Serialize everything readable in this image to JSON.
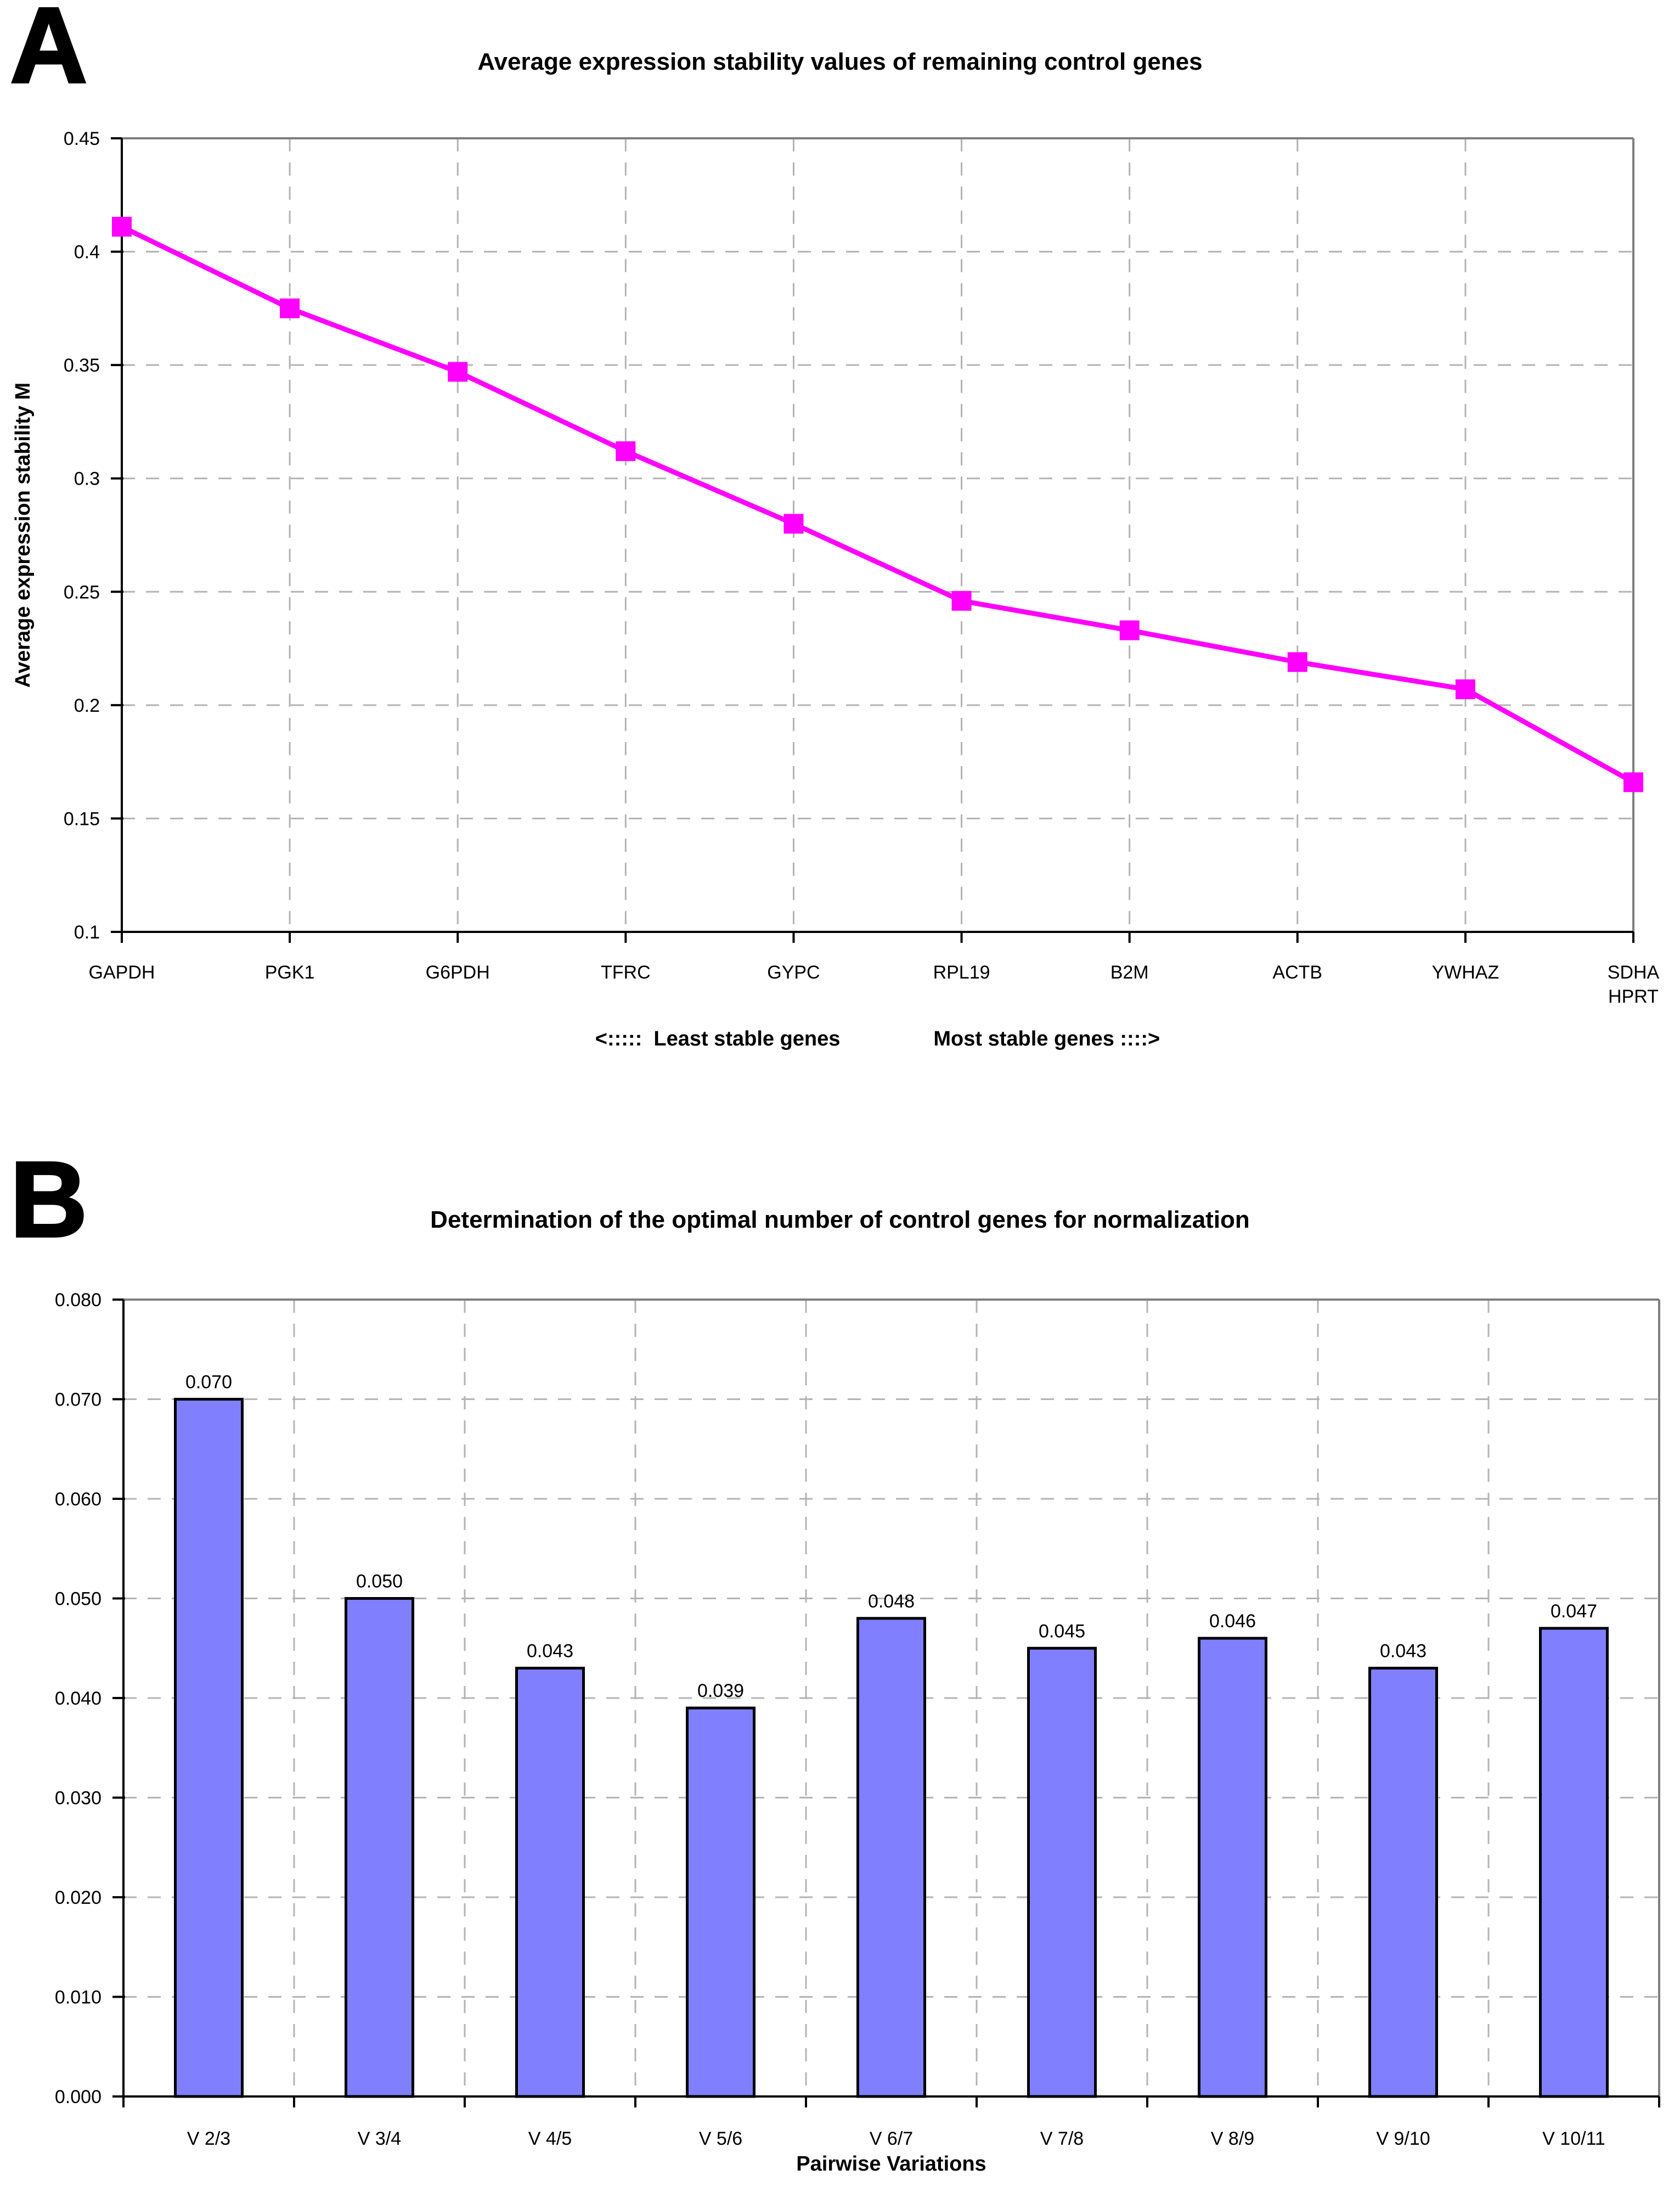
{
  "figure": {
    "panels": [
      {
        "letter": "A",
        "title": "Average expression stability values of remaining control genes"
      },
      {
        "letter": "B",
        "title": "Determination of the optimal number of control genes for normalization"
      }
    ]
  },
  "colors": {
    "line_series": "#FF00FF",
    "bar_fill": "#8080FF",
    "bar_border": "#000000",
    "grid": "#B3B3B3",
    "plot_border": "#7F7F7F",
    "axis": "#000000",
    "text": "#000000"
  },
  "chart_data": [
    {
      "type": "line",
      "title": "Average expression stability values of remaining control genes",
      "ylabel": "Average expression stability M",
      "xlabel": "",
      "categories": [
        "GAPDH",
        "PGK1",
        "G6PDH",
        "TFRC",
        "GYPC",
        "RPL19",
        "B2M",
        "ACTB",
        "YWHAZ",
        "SDHA\nHPRT"
      ],
      "values": [
        0.411,
        0.375,
        0.347,
        0.312,
        0.28,
        0.246,
        0.233,
        0.219,
        0.207,
        0.166
      ],
      "ylim": [
        0.1,
        0.45
      ],
      "ytick_labels": [
        "0.45",
        "0.4",
        "0.35",
        "0.3",
        "0.25",
        "0.2",
        "0.15",
        "0.1"
      ],
      "grid": "dashed horizontal and vertical",
      "legend": "none",
      "marker": "square",
      "annotation_left": "<:::::  Least stable genes",
      "annotation_right": "Most stable genes ::::>"
    },
    {
      "type": "bar",
      "title": "Determination of the optimal number of control genes for normalization",
      "ylabel": "",
      "xlabel": "Pairwise Variations",
      "categories": [
        "V 2/3",
        "V 3/4",
        "V 4/5",
        "V 5/6",
        "V 6/7",
        "V 7/8",
        "V 8/9",
        "V 9/10",
        "V 10/11"
      ],
      "values": [
        0.07,
        0.05,
        0.043,
        0.039,
        0.048,
        0.045,
        0.046,
        0.043,
        0.047
      ],
      "value_labels": [
        "0.070",
        "0.050",
        "0.043",
        "0.039",
        "0.048",
        "0.045",
        "0.046",
        "0.043",
        "0.047"
      ],
      "ylim": [
        0.0,
        0.08
      ],
      "ytick_labels": [
        "0.080",
        "0.070",
        "0.060",
        "0.050",
        "0.040",
        "0.030",
        "0.020",
        "0.010",
        "0.000"
      ],
      "grid": "dashed horizontal and vertical",
      "legend": "none"
    }
  ]
}
